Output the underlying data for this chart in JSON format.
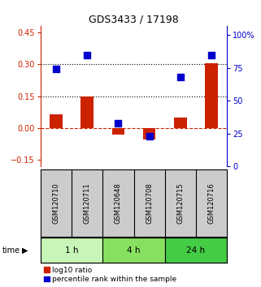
{
  "title": "GDS3433 / 17198",
  "samples": [
    "GSM120710",
    "GSM120711",
    "GSM120648",
    "GSM120708",
    "GSM120715",
    "GSM120716"
  ],
  "log10_ratio": [
    0.065,
    0.15,
    -0.03,
    -0.055,
    0.05,
    0.305
  ],
  "percentile_rank": [
    74,
    85,
    33,
    23,
    68,
    85
  ],
  "time_groups": [
    {
      "label": "1 h",
      "start": 0,
      "end": 2,
      "color": "#c8f5b8"
    },
    {
      "label": "4 h",
      "start": 2,
      "end": 4,
      "color": "#88e060"
    },
    {
      "label": "24 h",
      "start": 4,
      "end": 6,
      "color": "#44cc44"
    }
  ],
  "bar_color": "#cc2200",
  "dot_color": "#0000cc",
  "ylim_left": [
    -0.18,
    0.48
  ],
  "ylim_right": [
    0,
    107
  ],
  "yticks_left": [
    -0.15,
    0,
    0.15,
    0.3,
    0.45
  ],
  "yticks_right": [
    0,
    25,
    50,
    75,
    100
  ],
  "hlines": [
    0.15,
    0.3
  ],
  "hline_zero_color": "#cc2200",
  "hline_color": "black",
  "left_axis_color": "#cc2200",
  "right_axis_color": "#0000cc",
  "sample_box_color": "#cccccc",
  "background_color": "#ffffff",
  "legend_items": [
    "log10 ratio",
    "percentile rank within the sample"
  ]
}
